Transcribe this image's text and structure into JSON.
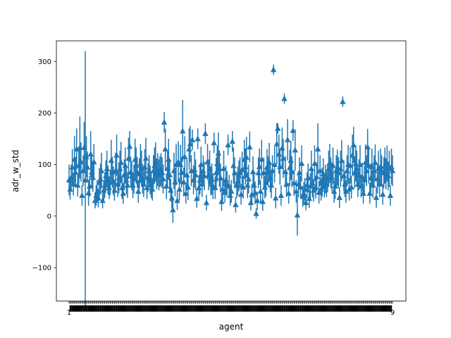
{
  "chart_data": {
    "type": "scatter",
    "marker": "triangle-up",
    "error_bars": true,
    "title": "",
    "xlabel": "agent",
    "ylabel": "adr_w_std",
    "ylim": [
      -165,
      340
    ],
    "yticks": [
      -100,
      0,
      100,
      200,
      300
    ],
    "grid": false,
    "legend": "none",
    "color": "#1f77b4",
    "x_tick_first": "1",
    "x_tick_last": "9",
    "series": [
      {
        "name": "",
        "values": [
          70,
          52,
          75,
          95,
          62,
          110,
          85,
          130,
          60,
          98,
          133,
          105,
          40,
          88,
          133,
          70,
          115,
          95,
          45,
          58,
          120,
          85,
          75,
          105,
          30,
          40,
          48,
          35,
          65,
          72,
          88,
          30,
          50,
          60,
          78,
          92,
          70,
          55,
          65,
          108,
          85,
          68,
          50,
          88,
          118,
          62,
          74,
          92,
          104,
          55,
          44,
          80,
          98,
          70,
          60,
          112,
          135,
          85,
          78,
          60,
          72,
          110,
          98,
          85,
          48,
          82,
          102,
          92,
          72,
          62,
          95,
          112,
          55,
          75,
          88,
          70,
          60,
          52,
          88,
          98,
          105,
          82,
          90,
          80,
          86,
          90,
          84,
          72,
          182,
          130,
          58,
          92,
          110,
          80,
          50,
          35,
          12,
          88,
          66,
          100,
          30,
          105,
          52,
          100,
          85,
          165,
          66,
          115,
          44,
          80,
          56,
          130,
          140,
          88,
          148,
          70,
          90,
          80,
          34,
          150,
          55,
          70,
          100,
          62,
          88,
          78,
          160,
          26,
          105,
          80,
          92,
          68,
          72,
          58,
          142,
          55,
          84,
          102,
          122,
          92,
          74,
          28,
          52,
          92,
          46,
          70,
          62,
          138,
          58,
          40,
          48,
          145,
          98,
          84,
          22,
          60,
          68,
          78,
          84,
          42,
          90,
          56,
          110,
          96,
          114,
          60,
          72,
          134,
          26,
          42,
          86,
          60,
          45,
          5,
          30,
          84,
          96,
          48,
          110,
          28,
          84,
          56,
          66,
          95,
          86,
          104,
          74,
          60,
          88,
          284,
          100,
          35,
          140,
          170,
          120,
          96,
          40,
          132,
          112,
          228,
          86,
          62,
          148,
          44,
          94,
          108,
          86,
          166,
          64,
          128,
          48,
          2,
          62,
          84,
          56,
          102,
          38,
          44,
          52,
          26,
          60,
          74,
          34,
          58,
          92,
          64,
          50,
          102,
          56,
          76,
          130,
          46,
          88,
          52,
          66,
          82,
          58,
          72,
          62,
          74,
          92,
          102,
          84,
          76,
          98,
          48,
          58,
          88,
          94,
          84,
          36,
          92,
          108,
          222,
          78,
          62,
          48,
          88,
          100,
          52,
          98,
          56,
          118,
          138,
          84,
          102,
          92,
          62,
          80,
          100,
          58,
          76,
          44,
          70,
          104,
          88,
          134,
          98,
          44,
          74,
          96,
          60,
          88,
          104,
          36,
          72,
          92,
          62,
          96,
          88,
          42,
          84,
          98,
          82,
          102,
          78,
          92,
          40,
          96,
          88
        ]
      }
    ],
    "errors": [
      30,
      20,
      25,
      35,
      22,
      45,
      30,
      40,
      22,
      35,
      60,
      38,
      20,
      30,
      50,
      250,
      40,
      30,
      25,
      20,
      45,
      30,
      28,
      35,
      15,
      20,
      22,
      18,
      28,
      30,
      35,
      15,
      20,
      25,
      30,
      35,
      28,
      22,
      25,
      40,
      30,
      28,
      20,
      35,
      40,
      25,
      30,
      35,
      40,
      22,
      20,
      30,
      35,
      28,
      25,
      40,
      30,
      30,
      28,
      25,
      28,
      40,
      35,
      30,
      22,
      30,
      38,
      35,
      28,
      25,
      35,
      40,
      22,
      28,
      30,
      28,
      25,
      22,
      30,
      35,
      38,
      30,
      32,
      30,
      30,
      32,
      30,
      28,
      20,
      40,
      25,
      35,
      40,
      30,
      22,
      20,
      25,
      35,
      28,
      40,
      18,
      40,
      22,
      38,
      30,
      60,
      28,
      40,
      20,
      30,
      25,
      40,
      35,
      30,
      20,
      28,
      35,
      30,
      18,
      20,
      25,
      28,
      35,
      25,
      30,
      28,
      20,
      15,
      35,
      30,
      35,
      28,
      30,
      25,
      20,
      22,
      30,
      35,
      40,
      35,
      28,
      18,
      22,
      35,
      20,
      28,
      25,
      20,
      22,
      20,
      22,
      20,
      35,
      30,
      15,
      25,
      28,
      30,
      30,
      20,
      35,
      22,
      38,
      35,
      40,
      25,
      28,
      30,
      15,
      20,
      30,
      25,
      22,
      10,
      18,
      30,
      35,
      22,
      38,
      18,
      30,
      22,
      28,
      35,
      30,
      38,
      28,
      25,
      30,
      10,
      35,
      20,
      40,
      10,
      38,
      35,
      20,
      40,
      38,
      10,
      30,
      25,
      40,
      20,
      35,
      38,
      30,
      20,
      25,
      40,
      22,
      40,
      25,
      30,
      22,
      35,
      20,
      22,
      22,
      15,
      25,
      28,
      18,
      25,
      35,
      28,
      22,
      35,
      22,
      28,
      50,
      22,
      30,
      22,
      28,
      30,
      22,
      28,
      25,
      28,
      35,
      38,
      30,
      28,
      35,
      22,
      25,
      30,
      35,
      30,
      20,
      35,
      40,
      10,
      30,
      25,
      22,
      30,
      38,
      22,
      35,
      22,
      40,
      35,
      30,
      35,
      35,
      25,
      30,
      38,
      22,
      28,
      20,
      28,
      35,
      30,
      35,
      35,
      20,
      28,
      35,
      25,
      30,
      35,
      20,
      28,
      35,
      25,
      35,
      30,
      20,
      30,
      35,
      30,
      35,
      28,
      35,
      20,
      35,
      30
    ]
  }
}
